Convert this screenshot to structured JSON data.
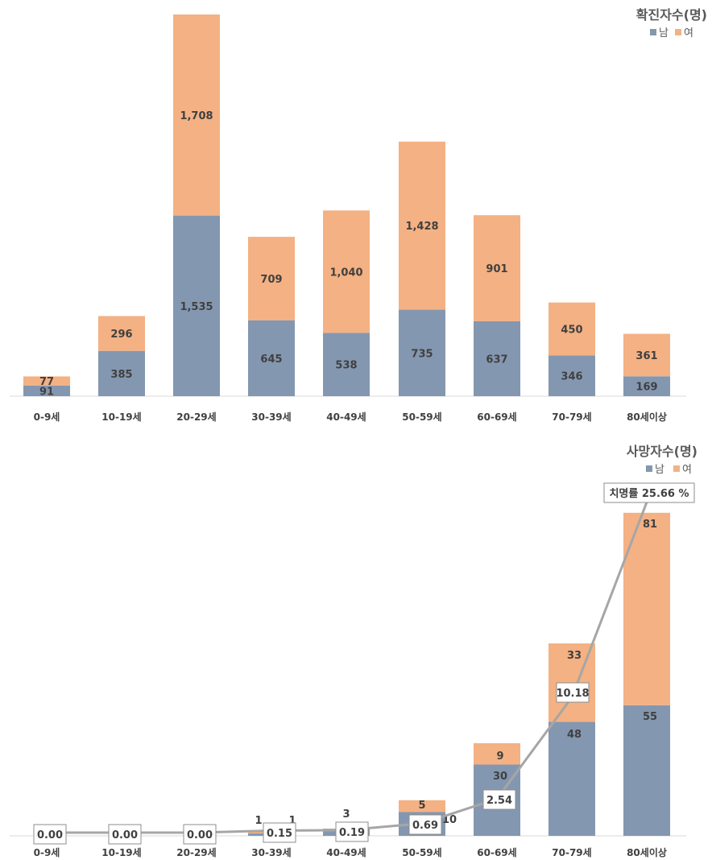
{
  "colors": {
    "male": "#8497b0",
    "female": "#f4b183",
    "line": "#a6a6a6",
    "axis": "#d9d9d9"
  },
  "chart_data": [
    {
      "type": "bar",
      "stacked": true,
      "title": "확진자수(명)",
      "categories": [
        "0-9세",
        "10-19세",
        "20-29세",
        "30-39세",
        "40-49세",
        "50-59세",
        "60-69세",
        "70-79세",
        "80세이상"
      ],
      "series": [
        {
          "name": "남",
          "values": [
            91,
            385,
            1535,
            645,
            538,
            735,
            637,
            346,
            169
          ]
        },
        {
          "name": "여",
          "values": [
            77,
            296,
            1708,
            709,
            1040,
            1428,
            901,
            450,
            361
          ]
        }
      ],
      "legend": "top-right",
      "ylim": [
        0,
        3250
      ]
    },
    {
      "type": "bar",
      "stacked": true,
      "title": "사망자수(명)",
      "categories": [
        "0-9세",
        "10-19세",
        "20-29세",
        "30-39세",
        "40-49세",
        "50-59세",
        "60-69세",
        "70-79세",
        "80세이상"
      ],
      "series": [
        {
          "name": "남",
          "values": [
            0,
            0,
            0,
            1,
            3,
            10,
            30,
            48,
            55
          ]
        },
        {
          "name": "여",
          "values": [
            0,
            0,
            0,
            1,
            0,
            5,
            9,
            33,
            81
          ]
        }
      ],
      "fatality_rate": {
        "label_prefix": "치명률",
        "unit": "%",
        "values": [
          "0.00",
          "0.00",
          "0.00",
          "0.15",
          "0.19",
          "0.69",
          "2.54",
          "10.18",
          "25.66"
        ]
      },
      "legend": "top-right",
      "ylim": [
        0,
        140
      ]
    }
  ]
}
